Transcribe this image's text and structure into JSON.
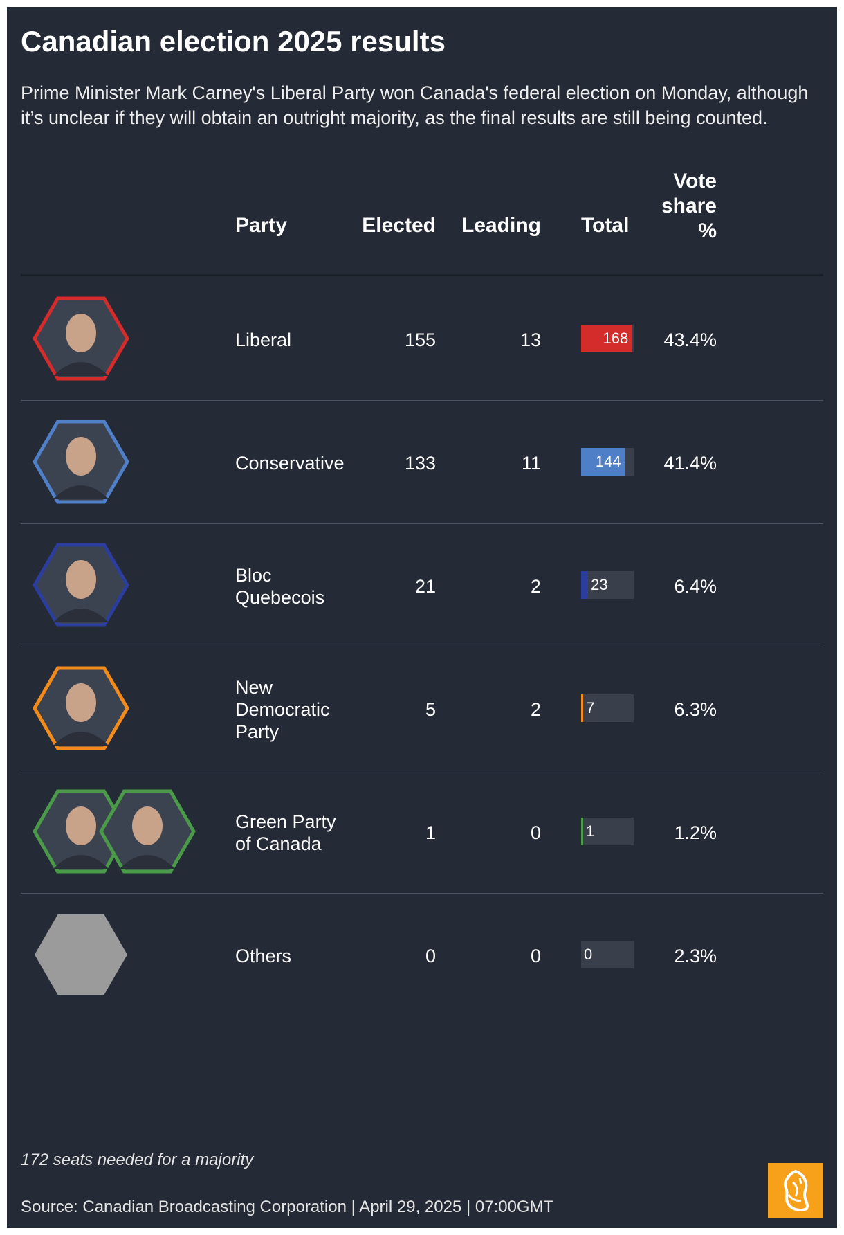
{
  "header": {
    "title": "Canadian election 2025 results",
    "subtitle": "Prime Minister Mark Carney's Liberal Party won Canada's federal election on Monday, although it’s unclear if they will obtain an outright majority, as the final results are still being counted."
  },
  "columns": {
    "party": "Party",
    "elected": "Elected",
    "leading": "Leading",
    "total": "Total",
    "vote_share": [
      "Vote",
      "share",
      "%"
    ]
  },
  "chart_data": {
    "type": "table",
    "bar_max": 172,
    "rows": [
      {
        "party_lines": [
          "Liberal"
        ],
        "elected": "155",
        "leading": "13",
        "total": 168,
        "total_label": "168",
        "vote_share": "43.4%",
        "color": "#d42b2b",
        "photo_icon": "liberal-leader-photo-icon",
        "bg": "#3c4350"
      },
      {
        "party_lines": [
          "Conservative"
        ],
        "elected": "133",
        "leading": "11",
        "total": 144,
        "total_label": "144",
        "vote_share": "41.4%",
        "color": "#4f7fc7",
        "photo_icon": "conservative-leader-photo-icon",
        "bg": "#3c4350"
      },
      {
        "party_lines": [
          "Bloc",
          "Quebecois"
        ],
        "elected": "21",
        "leading": "2",
        "total": 23,
        "total_label": "23",
        "vote_share": "6.4%",
        "color": "#2b3e9e",
        "photo_icon": "bloc-leader-photo-icon",
        "bg": "#3c4350"
      },
      {
        "party_lines": [
          "New",
          "Democratic",
          "Party"
        ],
        "elected": "5",
        "leading": "2",
        "total": 7,
        "total_label": "7",
        "vote_share": "6.3%",
        "color": "#f28b1b",
        "photo_icon": "ndp-leader-photo-icon",
        "bg": "#3c4350"
      },
      {
        "party_lines": [
          "Green Party",
          "of Canada"
        ],
        "elected": "1",
        "leading": "0",
        "total": 1,
        "total_label": "1",
        "vote_share": "1.2%",
        "color": "#4a9a4a",
        "photo_icon": "green-leaders-photo-icon",
        "bg": "#3c4350"
      },
      {
        "party_lines": [
          "Others"
        ],
        "elected": "0",
        "leading": "0",
        "total": 0,
        "total_label": "0",
        "vote_share": "2.3%",
        "color": "#9b9b9b",
        "photo_icon": "others-placeholder-icon",
        "bg": "#9b9b9b"
      }
    ]
  },
  "footer": {
    "note": "172 seats needed for a majority",
    "source": "Source: Canadian Broadcasting Corporation | April 29, 2025 | 07:00GMT",
    "logo_icon": "al-jazeera-logo-icon"
  },
  "colors": {
    "background": "#242a36",
    "gridline": "#4a5160",
    "bar_track": "#3a404b"
  }
}
